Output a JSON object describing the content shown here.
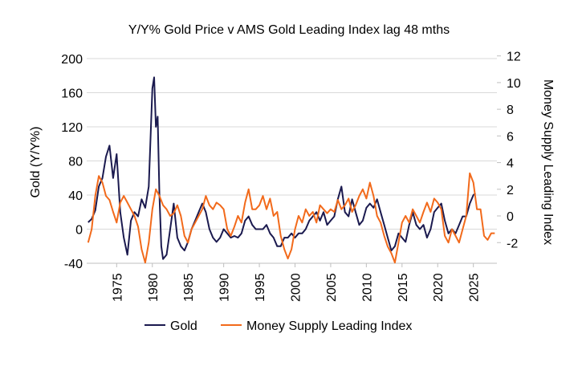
{
  "chart_data": {
    "type": "line",
    "title": "Y/Y% Gold Price v AMS Gold Leading Index lag 48 mths",
    "ylabel": "Gold (Y/Y%)",
    "y2label": "Money Supply Leading Index",
    "xlabel": "",
    "xlim": [
      1970.8,
      2028.3
    ],
    "ylim": [
      -40,
      200
    ],
    "y2lim": [
      -3.55,
      11.8
    ],
    "yticks": [
      -40,
      0,
      40,
      80,
      120,
      160,
      200
    ],
    "y2ticks": [
      -2,
      0,
      2,
      4,
      6,
      8,
      10,
      12
    ],
    "xticks": [
      1975,
      1980,
      1985,
      1990,
      1995,
      2000,
      2005,
      2010,
      2015,
      2020,
      2025
    ],
    "grid": true,
    "legend_position": "bottom",
    "series": [
      {
        "name": "Gold",
        "axis": "left",
        "color": "#1b1a4f",
        "x": [
          1971,
          1971.5,
          1972,
          1972.5,
          1973,
          1973.5,
          1974,
          1974.5,
          1975,
          1975.5,
          1976,
          1976.5,
          1977,
          1977.5,
          1978,
          1978.5,
          1979,
          1979.5,
          1980,
          1980.25,
          1980.5,
          1980.75,
          1981,
          1981.25,
          1981.5,
          1982,
          1982.5,
          1983,
          1983.5,
          1984,
          1984.5,
          1985,
          1985.5,
          1986,
          1986.5,
          1987,
          1987.5,
          1988,
          1988.5,
          1989,
          1989.5,
          1990,
          1990.5,
          1991,
          1991.5,
          1992,
          1992.5,
          1993,
          1993.5,
          1994,
          1994.5,
          1995,
          1995.5,
          1996,
          1996.5,
          1997,
          1997.5,
          1998,
          1998.5,
          1999,
          1999.5,
          2000,
          2000.5,
          2001,
          2001.5,
          2002,
          2002.5,
          2003,
          2003.5,
          2004,
          2004.5,
          2005,
          2005.5,
          2006,
          2006.5,
          2007,
          2007.5,
          2008,
          2008.5,
          2009,
          2009.5,
          2010,
          2010.5,
          2011,
          2011.5,
          2012,
          2012.5,
          2013,
          2013.5,
          2014,
          2014.5,
          2015,
          2015.5,
          2016,
          2016.5,
          2017,
          2017.5,
          2018,
          2018.5,
          2019,
          2019.5,
          2020,
          2020.5,
          2021,
          2021.5,
          2022,
          2022.5,
          2023,
          2023.5,
          2024,
          2024.5,
          2025,
          2025.3
        ],
        "values": [
          8,
          12,
          22,
          50,
          60,
          85,
          98,
          60,
          88,
          20,
          -10,
          -30,
          10,
          20,
          15,
          35,
          25,
          50,
          165,
          178,
          120,
          132,
          40,
          -20,
          -35,
          -30,
          0,
          30,
          -10,
          -20,
          -25,
          -15,
          0,
          10,
          20,
          30,
          20,
          0,
          -10,
          -15,
          -10,
          0,
          -5,
          -10,
          -8,
          -10,
          -5,
          10,
          15,
          5,
          0,
          0,
          0,
          5,
          -5,
          -10,
          -20,
          -20,
          -10,
          -10,
          -5,
          -10,
          -5,
          -5,
          0,
          10,
          15,
          20,
          10,
          20,
          5,
          10,
          15,
          35,
          50,
          20,
          15,
          35,
          20,
          5,
          10,
          25,
          30,
          25,
          35,
          20,
          5,
          -10,
          -25,
          -20,
          -5,
          -10,
          -15,
          5,
          20,
          5,
          0,
          5,
          -10,
          0,
          20,
          25,
          30,
          10,
          -5,
          0,
          -5,
          5,
          15,
          15,
          30,
          40,
          42
        ]
      },
      {
        "name": "Money Supply Leading Index",
        "axis": "right",
        "color": "#f26a1b",
        "x": [
          1971,
          1971.5,
          1972,
          1972.5,
          1973,
          1973.5,
          1974,
          1974.5,
          1975,
          1975.5,
          1976,
          1976.5,
          1977,
          1977.5,
          1978,
          1978.5,
          1979,
          1979.5,
          1980,
          1980.5,
          1981,
          1981.5,
          1982,
          1982.5,
          1983,
          1983.5,
          1984,
          1984.5,
          1985,
          1985.5,
          1986,
          1986.5,
          1987,
          1987.5,
          1988,
          1988.5,
          1989,
          1989.5,
          1990,
          1990.5,
          1991,
          1991.5,
          1992,
          1992.5,
          1993,
          1993.5,
          1994,
          1994.5,
          1995,
          1995.5,
          1996,
          1996.5,
          1997,
          1997.5,
          1998,
          1998.5,
          1999,
          1999.5,
          2000,
          2000.5,
          2001,
          2001.5,
          2002,
          2002.5,
          2003,
          2003.5,
          2004,
          2004.5,
          2005,
          2005.5,
          2006,
          2006.5,
          2007,
          2007.5,
          2008,
          2008.5,
          2009,
          2009.5,
          2010,
          2010.5,
          2011,
          2011.5,
          2012,
          2012.5,
          2013,
          2013.5,
          2014,
          2014.5,
          2015,
          2015.5,
          2016,
          2016.5,
          2017,
          2017.5,
          2018,
          2018.5,
          2019,
          2019.5,
          2020,
          2020.5,
          2021,
          2021.5,
          2022,
          2022.5,
          2023,
          2023.5,
          2024,
          2024.5,
          2025,
          2025.5,
          2026,
          2026.5,
          2027,
          2027.5,
          2028
        ],
        "values": [
          -2,
          -1,
          1.5,
          3,
          2.5,
          1.5,
          1.2,
          0.3,
          -0.5,
          1,
          1.5,
          1,
          0.5,
          0,
          -0.8,
          -2.5,
          -3.5,
          -2,
          0.5,
          2,
          1.5,
          0.8,
          0.5,
          0,
          0.2,
          0.8,
          0,
          -1.5,
          -2,
          -1,
          -0.5,
          0,
          0.5,
          1.5,
          0.8,
          0.5,
          1,
          0.8,
          0.5,
          -1,
          -1.5,
          -0.8,
          0,
          -0.5,
          1,
          2,
          0.5,
          0.5,
          0.8,
          1.5,
          0.5,
          1.3,
          0,
          0.3,
          -1.5,
          -2.5,
          -3.2,
          -2.5,
          -1,
          0,
          -0.5,
          0.5,
          0,
          0.3,
          -0.5,
          0.8,
          0.5,
          0.2,
          0.5,
          0.3,
          1.2,
          0.5,
          0.8,
          1.3,
          0.3,
          0.8,
          1.5,
          2,
          1.3,
          2.5,
          1.5,
          0,
          -0.5,
          -1.5,
          -2.3,
          -2.8,
          -3.5,
          -2,
          -0.5,
          0,
          -0.5,
          0.5,
          0,
          -0.5,
          0.3,
          1,
          0.3,
          1.3,
          1,
          0.5,
          -1.5,
          -2,
          -1,
          -1.5,
          -2,
          -1,
          0,
          3.2,
          2.5,
          0.5,
          0.5,
          -1.5,
          -1.8,
          -1.3,
          -1.3
        ]
      }
    ]
  }
}
